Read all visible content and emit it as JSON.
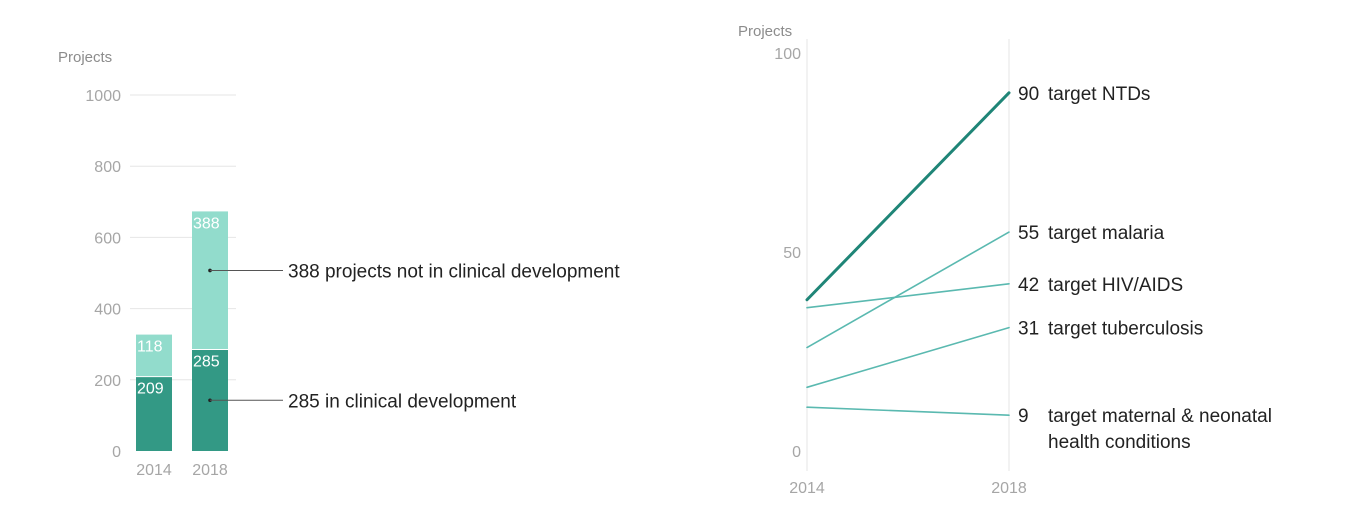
{
  "colors": {
    "dark": "#339985",
    "light": "#92dccc",
    "grid": "#e6e6e6",
    "line_strong": "#1f8577",
    "line_light": "#5ab9b0"
  },
  "chart_data": [
    {
      "type": "bar",
      "stacked": true,
      "ylabel": "Projects",
      "ylim": [
        0,
        1000
      ],
      "yticks": [
        "0",
        "200",
        "400",
        "600",
        "800",
        "1000"
      ],
      "categories": [
        "2014",
        "2018"
      ],
      "series": [
        {
          "name": "in clinical development",
          "values": [
            209,
            285
          ]
        },
        {
          "name": "projects not in clinical development",
          "values": [
            118,
            388
          ]
        }
      ],
      "bar_labels": [
        [
          "209",
          "118"
        ],
        [
          "285",
          "388"
        ]
      ],
      "annotations": [
        {
          "text": "388 projects not in clinical development",
          "series": 1,
          "category": 1
        },
        {
          "text": "285 in clinical development",
          "series": 0,
          "category": 1
        }
      ]
    },
    {
      "type": "line",
      "ylabel": "Projects",
      "ylim": [
        0,
        100
      ],
      "yticks": [
        "0",
        "50",
        "100"
      ],
      "x": [
        "2014",
        "2018"
      ],
      "series": [
        {
          "name": "target NTDs",
          "value_label": "90",
          "values": [
            38,
            90
          ],
          "emphasis": true
        },
        {
          "name": "target malaria",
          "value_label": "55",
          "values": [
            26,
            55
          ],
          "emphasis": false
        },
        {
          "name": "target HIV/AIDS",
          "value_label": "42",
          "values": [
            36,
            42
          ],
          "emphasis": false
        },
        {
          "name": "target tuberculosis",
          "value_label": "31",
          "values": [
            16,
            31
          ],
          "emphasis": false
        },
        {
          "name": "target maternal & neonatal",
          "name_line2": "health conditions",
          "value_label": "9",
          "values": [
            11,
            9
          ],
          "emphasis": false
        }
      ]
    }
  ]
}
